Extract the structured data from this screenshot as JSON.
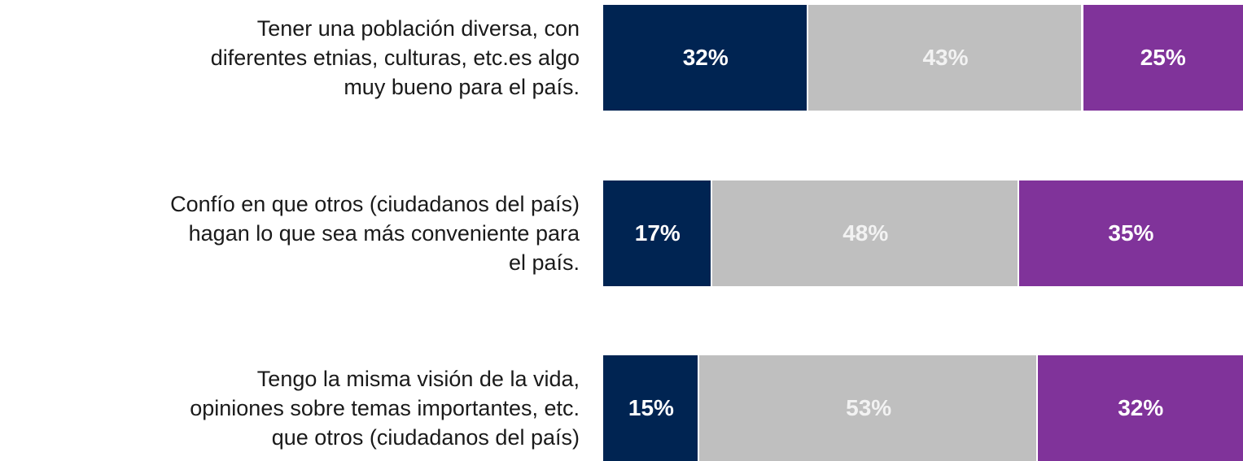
{
  "chart_data": {
    "type": "bar",
    "orientation": "horizontal",
    "stacked": true,
    "categories": [
      "Tener una población diversa, con\ndiferentes etnias, culturas, etc.es algo\nmuy bueno para el país.",
      "Confío en que otros (ciudadanos del país)\nhagan lo que sea más conveniente para\nel país.",
      "Tengo la misma visión de la vida,\nopiniones sobre temas importantes, etc.\nque otros (ciudadanos del país)"
    ],
    "xlim": [
      0,
      100
    ],
    "series": [
      {
        "color": "#002452",
        "label_color": "#ffffff",
        "values": [
          32,
          17,
          15
        ],
        "value_labels": [
          "32%",
          "17%",
          "15%"
        ]
      },
      {
        "color": "#bfbfbf",
        "label_color": "#f2f2f2",
        "values": [
          43,
          48,
          53
        ],
        "value_labels": [
          "43%",
          "48%",
          "53%"
        ]
      },
      {
        "color": "#80339a",
        "label_color": "#ffffff",
        "values": [
          25,
          35,
          32
        ],
        "value_labels": [
          "25%",
          "35%",
          "32%"
        ]
      }
    ]
  }
}
